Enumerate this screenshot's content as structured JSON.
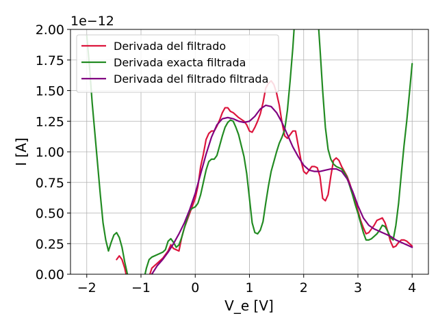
{
  "chart_data": {
    "type": "line",
    "title": "",
    "xlabel": "V_e [V]",
    "ylabel": "I [A]",
    "offset_text": "1e−12",
    "xlim": [
      -2.3,
      4.3
    ],
    "ylim": [
      0.0,
      2.0
    ],
    "xticks": [
      -2,
      -1,
      0,
      1,
      2,
      3,
      4
    ],
    "xtick_labels": [
      "−2",
      "−1",
      "0",
      "1",
      "2",
      "3",
      "4"
    ],
    "yticks": [
      0.0,
      0.25,
      0.5,
      0.75,
      1.0,
      1.25,
      1.5,
      1.75,
      2.0
    ],
    "ytick_labels": [
      "0.00",
      "0.25",
      "0.50",
      "0.75",
      "1.00",
      "1.25",
      "1.50",
      "1.75",
      "2.00"
    ],
    "grid": true,
    "legend_position": "top-left",
    "series": [
      {
        "name": "Derivada del filtrado",
        "color": "#dc143c",
        "points": [
          [
            -1.45,
            0.12
          ],
          [
            -1.4,
            0.15
          ],
          [
            -1.35,
            0.12
          ],
          [
            -1.3,
            0.05
          ],
          [
            -1.25,
            -0.05
          ],
          [
            -0.85,
            -0.02
          ],
          [
            -0.8,
            0.05
          ],
          [
            -0.7,
            0.09
          ],
          [
            -0.6,
            0.13
          ],
          [
            -0.5,
            0.19
          ],
          [
            -0.45,
            0.24
          ],
          [
            -0.4,
            0.21
          ],
          [
            -0.3,
            0.19
          ],
          [
            -0.25,
            0.3
          ],
          [
            -0.2,
            0.38
          ],
          [
            -0.1,
            0.5
          ],
          [
            0.0,
            0.62
          ],
          [
            0.05,
            0.72
          ],
          [
            0.1,
            0.88
          ],
          [
            0.15,
            0.98
          ],
          [
            0.2,
            1.1
          ],
          [
            0.25,
            1.15
          ],
          [
            0.3,
            1.17
          ],
          [
            0.35,
            1.17
          ],
          [
            0.4,
            1.21
          ],
          [
            0.45,
            1.26
          ],
          [
            0.5,
            1.32
          ],
          [
            0.55,
            1.36
          ],
          [
            0.6,
            1.36
          ],
          [
            0.65,
            1.33
          ],
          [
            0.7,
            1.32
          ],
          [
            0.75,
            1.3
          ],
          [
            0.8,
            1.28
          ],
          [
            0.9,
            1.25
          ],
          [
            0.95,
            1.22
          ],
          [
            1.0,
            1.17
          ],
          [
            1.05,
            1.16
          ],
          [
            1.1,
            1.2
          ],
          [
            1.15,
            1.25
          ],
          [
            1.2,
            1.31
          ],
          [
            1.25,
            1.4
          ],
          [
            1.3,
            1.52
          ],
          [
            1.35,
            1.56
          ],
          [
            1.4,
            1.58
          ],
          [
            1.45,
            1.55
          ],
          [
            1.5,
            1.48
          ],
          [
            1.55,
            1.38
          ],
          [
            1.6,
            1.24
          ],
          [
            1.65,
            1.13
          ],
          [
            1.7,
            1.11
          ],
          [
            1.75,
            1.14
          ],
          [
            1.8,
            1.17
          ],
          [
            1.85,
            1.17
          ],
          [
            1.9,
            1.05
          ],
          [
            1.95,
            0.93
          ],
          [
            2.0,
            0.84
          ],
          [
            2.05,
            0.82
          ],
          [
            2.1,
            0.85
          ],
          [
            2.15,
            0.88
          ],
          [
            2.2,
            0.88
          ],
          [
            2.25,
            0.87
          ],
          [
            2.3,
            0.8
          ],
          [
            2.35,
            0.62
          ],
          [
            2.4,
            0.6
          ],
          [
            2.45,
            0.65
          ],
          [
            2.5,
            0.8
          ],
          [
            2.55,
            0.93
          ],
          [
            2.6,
            0.95
          ],
          [
            2.65,
            0.93
          ],
          [
            2.7,
            0.88
          ],
          [
            2.75,
            0.84
          ],
          [
            2.8,
            0.8
          ],
          [
            2.85,
            0.74
          ],
          [
            2.9,
            0.67
          ],
          [
            2.95,
            0.6
          ],
          [
            3.0,
            0.52
          ],
          [
            3.05,
            0.44
          ],
          [
            3.1,
            0.38
          ],
          [
            3.15,
            0.33
          ],
          [
            3.2,
            0.34
          ],
          [
            3.25,
            0.37
          ],
          [
            3.3,
            0.4
          ],
          [
            3.35,
            0.44
          ],
          [
            3.4,
            0.45
          ],
          [
            3.45,
            0.46
          ],
          [
            3.5,
            0.42
          ],
          [
            3.55,
            0.35
          ],
          [
            3.6,
            0.27
          ],
          [
            3.65,
            0.22
          ],
          [
            3.7,
            0.23
          ],
          [
            3.75,
            0.26
          ],
          [
            3.8,
            0.28
          ],
          [
            3.85,
            0.28
          ],
          [
            3.9,
            0.27
          ],
          [
            3.95,
            0.25
          ],
          [
            4.0,
            0.23
          ]
        ]
      },
      {
        "name": "Derivada exacta filtrada",
        "color": "#228b22",
        "points": [
          [
            -2.0,
            1.95
          ],
          [
            -1.95,
            1.7
          ],
          [
            -1.9,
            1.4
          ],
          [
            -1.85,
            1.15
          ],
          [
            -1.8,
            0.9
          ],
          [
            -1.75,
            0.65
          ],
          [
            -1.7,
            0.42
          ],
          [
            -1.65,
            0.28
          ],
          [
            -1.6,
            0.19
          ],
          [
            -1.55,
            0.26
          ],
          [
            -1.5,
            0.32
          ],
          [
            -1.45,
            0.34
          ],
          [
            -1.4,
            0.3
          ],
          [
            -1.35,
            0.22
          ],
          [
            -1.3,
            0.1
          ],
          [
            -1.25,
            0.0
          ],
          [
            -1.2,
            -0.05
          ],
          [
            -0.95,
            -0.05
          ],
          [
            -0.9,
            0.05
          ],
          [
            -0.85,
            0.12
          ],
          [
            -0.8,
            0.14
          ],
          [
            -0.7,
            0.16
          ],
          [
            -0.6,
            0.18
          ],
          [
            -0.55,
            0.2
          ],
          [
            -0.5,
            0.27
          ],
          [
            -0.45,
            0.29
          ],
          [
            -0.4,
            0.26
          ],
          [
            -0.35,
            0.22
          ],
          [
            -0.3,
            0.24
          ],
          [
            -0.25,
            0.3
          ],
          [
            -0.2,
            0.38
          ],
          [
            -0.15,
            0.45
          ],
          [
            -0.1,
            0.52
          ],
          [
            -0.05,
            0.54
          ],
          [
            0.0,
            0.55
          ],
          [
            0.05,
            0.58
          ],
          [
            0.1,
            0.65
          ],
          [
            0.15,
            0.75
          ],
          [
            0.2,
            0.85
          ],
          [
            0.25,
            0.92
          ],
          [
            0.3,
            0.94
          ],
          [
            0.35,
            0.94
          ],
          [
            0.4,
            0.97
          ],
          [
            0.45,
            1.05
          ],
          [
            0.5,
            1.13
          ],
          [
            0.55,
            1.2
          ],
          [
            0.6,
            1.24
          ],
          [
            0.65,
            1.26
          ],
          [
            0.7,
            1.25
          ],
          [
            0.75,
            1.2
          ],
          [
            0.8,
            1.14
          ],
          [
            0.85,
            1.05
          ],
          [
            0.9,
            0.96
          ],
          [
            0.95,
            0.82
          ],
          [
            1.0,
            0.62
          ],
          [
            1.05,
            0.42
          ],
          [
            1.1,
            0.34
          ],
          [
            1.15,
            0.33
          ],
          [
            1.2,
            0.36
          ],
          [
            1.25,
            0.43
          ],
          [
            1.3,
            0.58
          ],
          [
            1.35,
            0.72
          ],
          [
            1.4,
            0.84
          ],
          [
            1.45,
            0.92
          ],
          [
            1.5,
            1.0
          ],
          [
            1.55,
            1.07
          ],
          [
            1.6,
            1.12
          ],
          [
            1.65,
            1.18
          ],
          [
            1.7,
            1.34
          ],
          [
            1.75,
            1.58
          ],
          [
            1.8,
            1.85
          ],
          [
            1.83,
            2.05
          ],
          [
            2.27,
            2.05
          ],
          [
            2.3,
            1.85
          ],
          [
            2.35,
            1.5
          ],
          [
            2.4,
            1.2
          ],
          [
            2.45,
            1.02
          ],
          [
            2.5,
            0.94
          ],
          [
            2.55,
            0.9
          ],
          [
            2.6,
            0.88
          ],
          [
            2.65,
            0.87
          ],
          [
            2.7,
            0.86
          ],
          [
            2.75,
            0.83
          ],
          [
            2.8,
            0.79
          ],
          [
            2.85,
            0.72
          ],
          [
            2.9,
            0.65
          ],
          [
            2.95,
            0.57
          ],
          [
            3.0,
            0.5
          ],
          [
            3.05,
            0.42
          ],
          [
            3.1,
            0.34
          ],
          [
            3.15,
            0.28
          ],
          [
            3.2,
            0.28
          ],
          [
            3.25,
            0.29
          ],
          [
            3.3,
            0.31
          ],
          [
            3.35,
            0.33
          ],
          [
            3.4,
            0.36
          ],
          [
            3.45,
            0.4
          ],
          [
            3.5,
            0.39
          ],
          [
            3.55,
            0.35
          ],
          [
            3.6,
            0.3
          ],
          [
            3.65,
            0.28
          ],
          [
            3.7,
            0.4
          ],
          [
            3.75,
            0.58
          ],
          [
            3.8,
            0.82
          ],
          [
            3.85,
            1.05
          ],
          [
            3.9,
            1.25
          ],
          [
            3.95,
            1.48
          ],
          [
            4.0,
            1.72
          ]
        ]
      },
      {
        "name": "Derivada del filtrado filtrada",
        "color": "#800080",
        "points": [
          [
            -0.8,
            0.0
          ],
          [
            -0.7,
            0.07
          ],
          [
            -0.6,
            0.12
          ],
          [
            -0.5,
            0.18
          ],
          [
            -0.4,
            0.25
          ],
          [
            -0.3,
            0.33
          ],
          [
            -0.2,
            0.42
          ],
          [
            -0.1,
            0.53
          ],
          [
            0.0,
            0.66
          ],
          [
            0.1,
            0.82
          ],
          [
            0.2,
            0.98
          ],
          [
            0.3,
            1.12
          ],
          [
            0.4,
            1.22
          ],
          [
            0.5,
            1.27
          ],
          [
            0.6,
            1.28
          ],
          [
            0.7,
            1.27
          ],
          [
            0.8,
            1.25
          ],
          [
            0.9,
            1.24
          ],
          [
            1.0,
            1.25
          ],
          [
            1.1,
            1.29
          ],
          [
            1.2,
            1.35
          ],
          [
            1.3,
            1.38
          ],
          [
            1.4,
            1.37
          ],
          [
            1.5,
            1.32
          ],
          [
            1.6,
            1.24
          ],
          [
            1.7,
            1.14
          ],
          [
            1.8,
            1.04
          ],
          [
            1.9,
            0.96
          ],
          [
            2.0,
            0.89
          ],
          [
            2.1,
            0.85
          ],
          [
            2.2,
            0.84
          ],
          [
            2.3,
            0.84
          ],
          [
            2.4,
            0.85
          ],
          [
            2.5,
            0.86
          ],
          [
            2.6,
            0.86
          ],
          [
            2.7,
            0.84
          ],
          [
            2.8,
            0.78
          ],
          [
            2.9,
            0.68
          ],
          [
            3.0,
            0.56
          ],
          [
            3.1,
            0.46
          ],
          [
            3.2,
            0.4
          ],
          [
            3.3,
            0.37
          ],
          [
            3.4,
            0.35
          ],
          [
            3.5,
            0.33
          ],
          [
            3.6,
            0.31
          ],
          [
            3.7,
            0.28
          ],
          [
            3.8,
            0.26
          ],
          [
            3.9,
            0.24
          ],
          [
            4.0,
            0.22
          ]
        ]
      }
    ]
  }
}
